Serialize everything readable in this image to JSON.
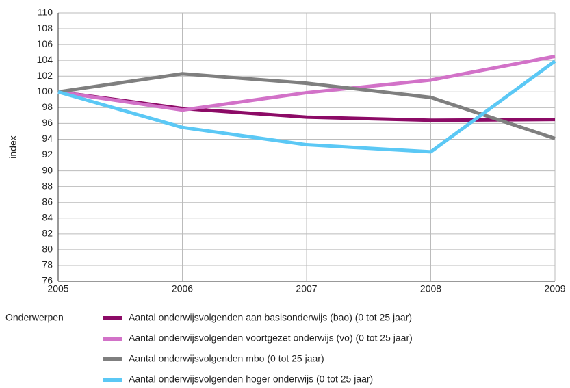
{
  "chart_data": {
    "type": "line",
    "y_label": "index",
    "legend_title": "Onderwerpen",
    "x": [
      2005,
      2006,
      2007,
      2008,
      2009
    ],
    "xlim": [
      2005,
      2009
    ],
    "xticks": [
      2005,
      2006,
      2007,
      2008,
      2009
    ],
    "ylim": [
      76,
      110
    ],
    "yticks": [
      76,
      78,
      80,
      82,
      84,
      86,
      88,
      90,
      92,
      94,
      96,
      98,
      100,
      102,
      104,
      106,
      108,
      110
    ],
    "grid": true,
    "series": [
      {
        "name": "Aantal onderwijsvolgenden aan basisonderwijs (bao) (0 tot 25 jaar)",
        "color": "#8c0b66",
        "values": [
          100,
          97.9,
          96.8,
          96.4,
          96.5
        ]
      },
      {
        "name": "Aantal onderwijsvolgenden voortgezet onderwijs (vo) (0 tot 25 jaar)",
        "color": "#d272c8",
        "values": [
          100,
          97.7,
          99.9,
          101.5,
          104.5
        ]
      },
      {
        "name": "Aantal onderwijsvolgenden mbo (0 tot 25 jaar)",
        "color": "#7f7f7f",
        "values": [
          100,
          102.3,
          101.1,
          99.3,
          94.1
        ]
      },
      {
        "name": "Aantal onderwijsvolgenden hoger onderwijs (0 tot 25 jaar)",
        "color": "#5bc8f5",
        "values": [
          100,
          95.5,
          93.3,
          92.4,
          103.9
        ]
      }
    ]
  }
}
